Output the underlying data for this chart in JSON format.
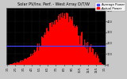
{
  "title": "Solar PV/Inv. Perf. - West Array D/T/W",
  "legend_labels": [
    "Actual Power",
    "Average Power"
  ],
  "bar_color": "#ff0000",
  "avg_line_color": "#4444ff",
  "avg_line_value": 0.35,
  "background_color": "#c8c8c8",
  "plot_bg_color": "#000000",
  "grid_color": "#555555",
  "ylim": [
    0,
    1.05
  ],
  "ytick_labels": [
    "0",
    "100",
    "200",
    "300",
    "400",
    "500"
  ],
  "ytick_vals": [
    0.0,
    0.2,
    0.4,
    0.6,
    0.8,
    1.0
  ],
  "n_bars": 150,
  "title_fontsize": 3.5,
  "tick_fontsize": 2.5,
  "legend_fontsize": 2.8
}
